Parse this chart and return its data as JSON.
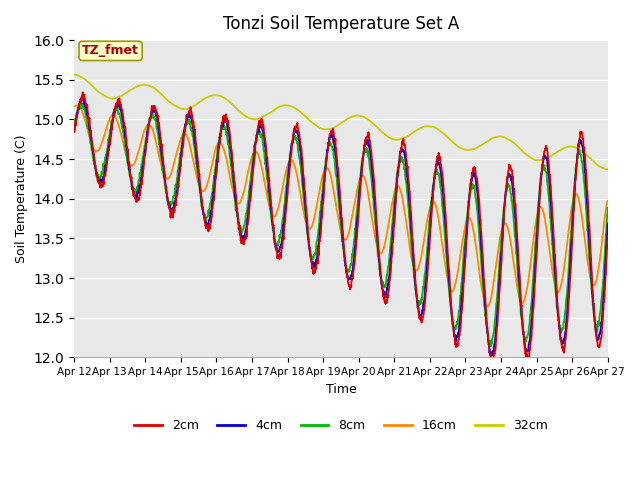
{
  "title": "Tonzi Soil Temperature Set A",
  "xlabel": "Time",
  "ylabel": "Soil Temperature (C)",
  "ylim": [
    12.0,
    16.0
  ],
  "yticks": [
    12.0,
    12.5,
    13.0,
    13.5,
    14.0,
    14.5,
    15.0,
    15.5,
    16.0
  ],
  "xtick_labels": [
    "Apr 12",
    "Apr 13",
    "Apr 14",
    "Apr 15",
    "Apr 16",
    "Apr 17",
    "Apr 18",
    "Apr 19",
    "Apr 20",
    "Apr 21",
    "Apr 22",
    "Apr 23",
    "Apr 24",
    "Apr 25",
    "Apr 26",
    "Apr 27"
  ],
  "legend_labels": [
    "2cm",
    "4cm",
    "8cm",
    "16cm",
    "32cm"
  ],
  "line_colors": [
    "#dd0000",
    "#0000cc",
    "#00bb00",
    "#ff8800",
    "#cccc00"
  ],
  "annotation_text": "TZ_fmet",
  "annotation_color": "#aa0000",
  "annotation_bg": "#ffffcc",
  "bg_color": "#e8e8e8"
}
